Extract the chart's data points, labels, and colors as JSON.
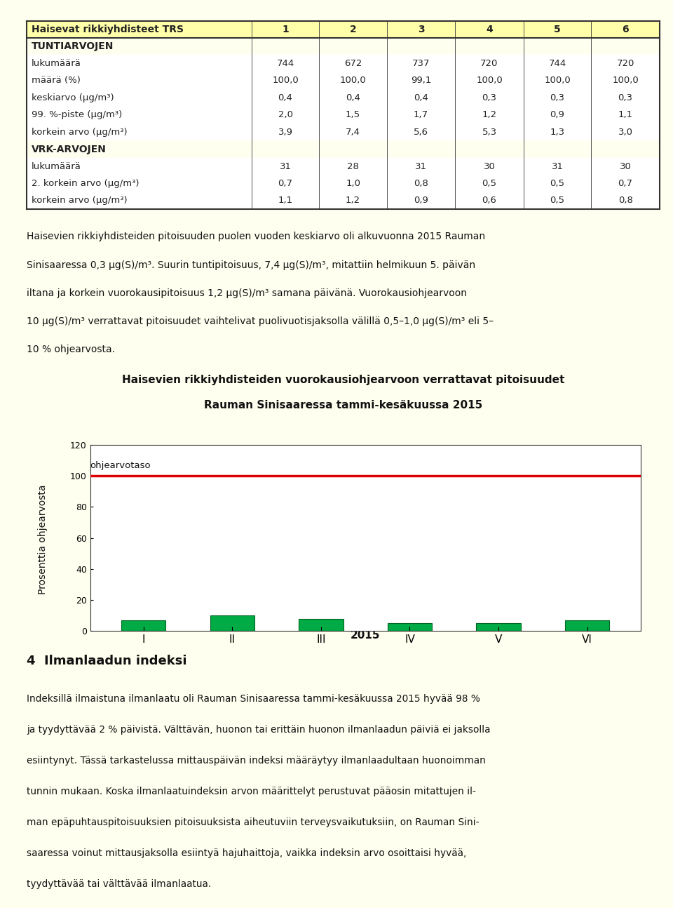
{
  "page_bg": "#fffff0",
  "table_header_bg": "#ffffaa",
  "table_border_color": "#333333",
  "table_header": [
    "Haisevat rikkiyhdisteet TRS",
    "1",
    "2",
    "3",
    "4",
    "5",
    "6"
  ],
  "section1_title": "TUNTIARVOJEN",
  "section1_rows": [
    [
      "lukumäärä",
      "744",
      "672",
      "737",
      "720",
      "744",
      "720"
    ],
    [
      "määrä (%)",
      "100,0",
      "100,0",
      "99,1",
      "100,0",
      "100,0",
      "100,0"
    ],
    [
      "keskiarvo (µg/m³)",
      "0,4",
      "0,4",
      "0,4",
      "0,3",
      "0,3",
      "0,3"
    ],
    [
      "99. %-piste (µg/m³)",
      "2,0",
      "1,5",
      "1,7",
      "1,2",
      "0,9",
      "1,1"
    ],
    [
      "korkein arvo (µg/m³)",
      "3,9",
      "7,4",
      "5,6",
      "5,3",
      "1,3",
      "3,0"
    ]
  ],
  "section2_title": "VRK-ARVOJEN",
  "section2_rows": [
    [
      "lukumäärä",
      "31",
      "28",
      "31",
      "30",
      "31",
      "30"
    ],
    [
      "2. korkein arvo (µg/m³)",
      "0,7",
      "1,0",
      "0,8",
      "0,5",
      "0,5",
      "0,7"
    ],
    [
      "korkein arvo (µg/m³)",
      "1,1",
      "1,2",
      "0,9",
      "0,6",
      "0,5",
      "0,8"
    ]
  ],
  "paragraph_line1": "Haisevien rikkiyhdisteiden pitoisuuden puolen vuoden keskiarvo oli alkuvuonna 2015 Rauman",
  "paragraph_line2": "Sinisaaressa 0,3 µg(S)/m³. Suurin tuntipitoisuus, 7,4 µg(S)/m³, mitattiin helmikuun 5. päivän",
  "paragraph_line3": "iltana ja korkein vuorokausipitoisuus 1,2 µg(S)/m³ samana päivänä. Vuorokausiohjearvoon",
  "paragraph_line4": "10 µg(S)/m³ verrattavat pitoisuudet vaihtelivat puolivuotisjaksolla välillä 0,5–1,0 µg(S)/m³ eli 5–",
  "paragraph_line5": "10 % ohjearvosta.",
  "chart_title_line1": "Haisevien rikkiyhdisteiden vuorokausiohjearvoon verrattavat pitoisuudet",
  "chart_title_line2": "Rauman Sinisaaressa tammi-kesäkuussa 2015",
  "chart_bg": "#fffff0",
  "bar_color": "#00aa44",
  "bar_edge_color": "#006622",
  "reference_line_color": "#dd0000",
  "reference_line_label": "ohjearvotaso",
  "reference_line_value": 100,
  "bar_values": [
    7,
    10,
    8,
    5,
    5,
    7
  ],
  "x_labels": [
    "I",
    "II",
    "III",
    "IV",
    "V",
    "VI"
  ],
  "x_axis_label": "2015",
  "y_axis_label": "Prosenttia ohjearvosta",
  "y_min": 0,
  "y_max": 120,
  "y_ticks": [
    0,
    20,
    40,
    60,
    80,
    100,
    120
  ],
  "section3_title": "4  Ilmanlaadun indeksi",
  "idx_line1": "Indeksillä ilmaistuna ilmanlaatu oli Rauman Sinisaaressa tammi-kesäkuussa 2015 hyvää 98 %",
  "idx_line2": "ja tyydyttävää 2 % päivistä. Välttävän, huonon tai erittäin huonon ilmanlaadun päiviä ei jaksolla",
  "idx_line3": "esiintynyt. Tässä tarkastelussa mittauspäivän indeksi määräytyy ilmanlaadultaan huonoimman",
  "idx_line4": "tunnin mukaan. Koska ilmanlaatuindeksin arvon määrittelyt perustuvat pääosin mitattujen il-",
  "idx_line5": "man epäpuhtauspitoisuuksien pitoisuuksista aiheutuviin terveysvaikutuksiin, on Rauman Sini-",
  "idx_line6": "saaressa voinut mittausjaksolla esiintyä hajuhaittoja, vaikka indeksin arvo osoittaisi hyvää,",
  "idx_line7": "tyydyttävää tai välttävää ilmanlaatua."
}
